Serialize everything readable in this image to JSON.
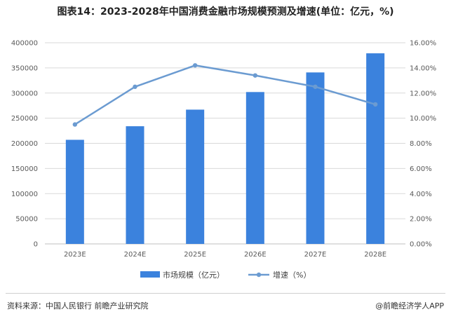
{
  "title": "图表14：2023-2028年中国消费金融市场规模预测及增速(单位：亿元，%)",
  "source": "资料来源：中国人民银行 前瞻产业研究院",
  "brand": "@前瞻经济学人APP",
  "colors": {
    "bar": "#3b82dd",
    "line": "#6b9bd1",
    "grid": "#d9d9d9",
    "axis": "#bfbfbf"
  },
  "chart_data": {
    "type": "bar",
    "categories": [
      "2023E",
      "2024E",
      "2025E",
      "2026E",
      "2027E",
      "2028E"
    ],
    "series": [
      {
        "name": "市场规模（亿元）",
        "type": "bar",
        "axis": "left",
        "values": [
          207000,
          234000,
          267000,
          302000,
          341000,
          379000
        ]
      },
      {
        "name": "增速（%）",
        "type": "line",
        "axis": "right",
        "values": [
          9.5,
          12.5,
          14.2,
          13.4,
          12.5,
          11.1
        ]
      }
    ],
    "ylim": [
      0,
      400000
    ],
    "yticks": [
      0,
      50000,
      100000,
      150000,
      200000,
      250000,
      300000,
      350000,
      400000
    ],
    "y2lim": [
      0,
      16
    ],
    "y2ticks": [
      "0.00%",
      "2.00%",
      "4.00%",
      "6.00%",
      "8.00%",
      "10.00%",
      "12.00%",
      "14.00%",
      "16.00%"
    ],
    "grid": true,
    "legend": "bottom"
  }
}
